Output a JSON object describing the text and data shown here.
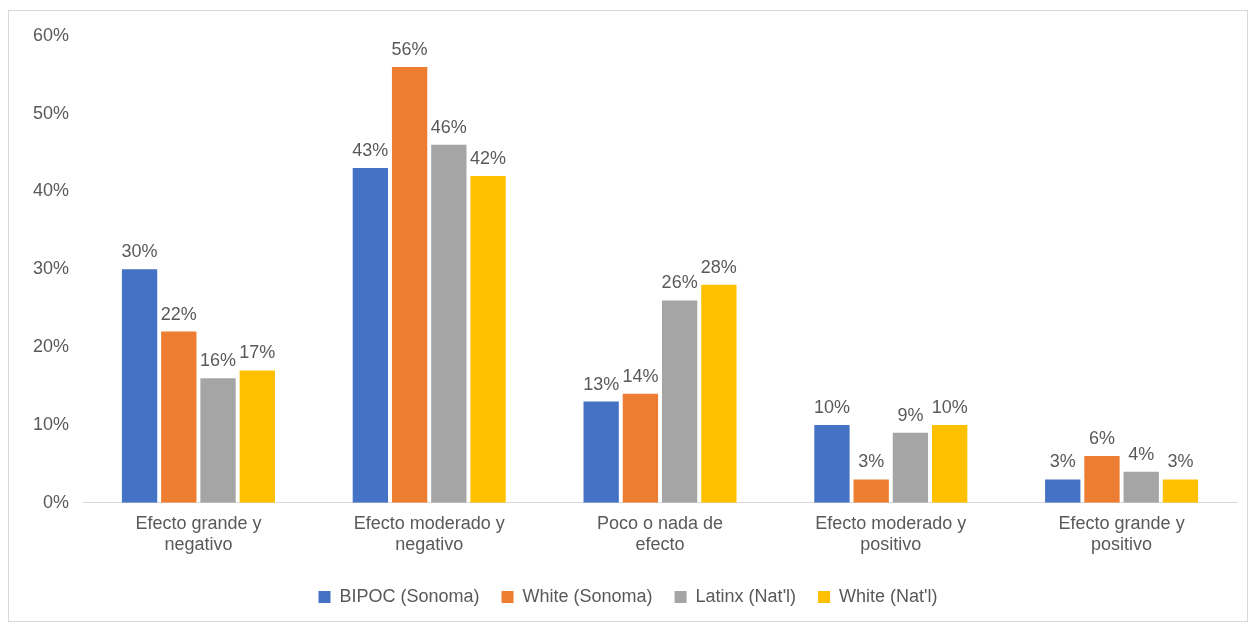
{
  "chart_data": {
    "type": "bar",
    "categories": [
      "Efecto grande y negativo",
      "Efecto moderado y negativo",
      "Poco o nada de efecto",
      "Efecto moderado y positivo",
      "Efecto grande y positivo"
    ],
    "series": [
      {
        "name": "BIPOC (Sonoma)",
        "color": "#4472c4",
        "values": [
          30,
          43,
          13,
          10,
          3
        ],
        "value_labels": [
          "30%",
          "43%",
          "13%",
          "10%",
          "3%"
        ]
      },
      {
        "name": "White (Sonoma)",
        "color": "#ed7d31",
        "values": [
          22,
          56,
          14,
          3,
          6
        ],
        "value_labels": [
          "22%",
          "56%",
          "14%",
          "3%",
          "6%"
        ]
      },
      {
        "name": "Latinx (Nat'l)",
        "color": "#a5a5a5",
        "values": [
          16,
          46,
          26,
          9,
          4
        ],
        "value_labels": [
          "16%",
          "46%",
          "26%",
          "9%",
          "4%"
        ]
      },
      {
        "name": "White (Nat'l)",
        "color": "#ffc000",
        "values": [
          17,
          42,
          28,
          10,
          3
        ],
        "value_labels": [
          "17%",
          "42%",
          "28%",
          "10%",
          "3%"
        ]
      }
    ],
    "ylim": [
      0,
      60
    ],
    "yticks": [
      {
        "value": 0,
        "label": "0%"
      },
      {
        "value": 10,
        "label": "10%"
      },
      {
        "value": 20,
        "label": "20%"
      },
      {
        "value": 30,
        "label": "30%"
      },
      {
        "value": 40,
        "label": "40%"
      },
      {
        "value": 50,
        "label": "50%"
      },
      {
        "value": 60,
        "label": "60%"
      }
    ],
    "grid": false,
    "legend": "bottom"
  }
}
